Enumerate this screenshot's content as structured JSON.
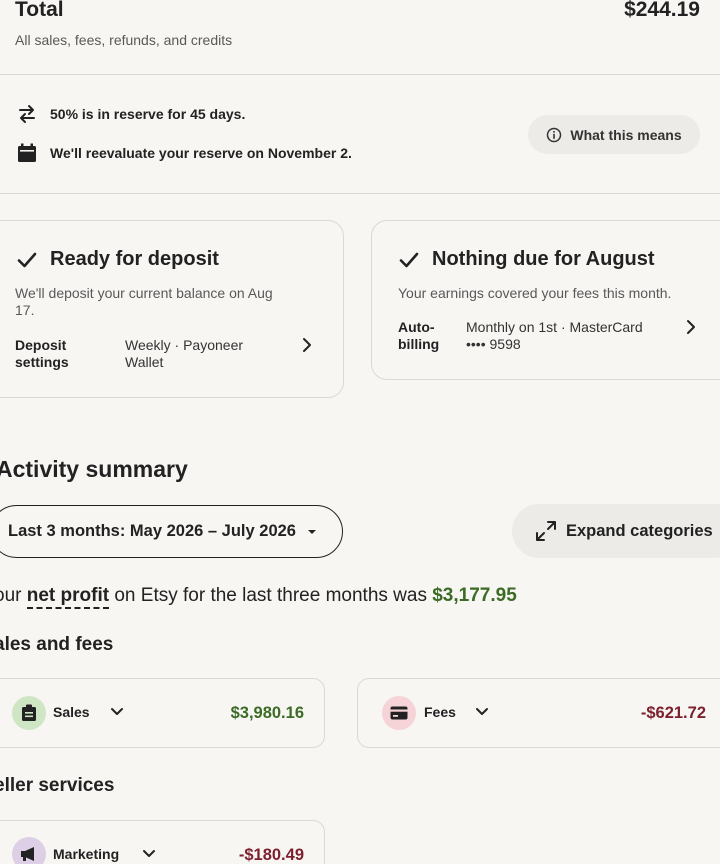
{
  "total": {
    "label": "Total",
    "amount": "$244.19",
    "subtitle": "All sales, fees, refunds, and credits"
  },
  "reserve": {
    "line1": "50% is in reserve for 45 days.",
    "line2": "We'll reevaluate your reserve on November 2.",
    "button_label": "What this means"
  },
  "deposit": {
    "title": "Ready for deposit",
    "subtitle_line1": "We'll deposit your current balance on Aug",
    "subtitle_line2": "17.",
    "settings_label_line1": "Deposit",
    "settings_label_line2": "settings",
    "settings_value_line1": "Weekly · Payoneer",
    "settings_value_line2": "Wallet"
  },
  "billing": {
    "title": "Nothing due for August",
    "subtitle": "Your earnings covered your fees this month.",
    "label_line1": "Auto-",
    "label_line2": "billing",
    "value_line1": "Monthly on 1st · MasterCard",
    "value_line2": "•••• 9598"
  },
  "activity": {
    "heading": "Activity summary",
    "date_range": "Last 3 months: May 2026 – July 2026",
    "expand_label": "Expand categories",
    "profit_prefix": "our",
    "profit_term": "net profit",
    "profit_middle": "on Etsy for the last three months was",
    "profit_amount": "$3,177.95"
  },
  "sales_fees": {
    "heading": "ales and fees",
    "sales_label": "Sales",
    "sales_value": "$3,980.16",
    "fees_label": "Fees",
    "fees_value": "-$621.72"
  },
  "seller_services": {
    "heading": "eller services",
    "marketing_label": "Marketing",
    "marketing_value": "-$180.49"
  },
  "colors": {
    "positive": "#3b6b25",
    "negative": "#7d1f2e",
    "background": "#f8f6f3"
  }
}
